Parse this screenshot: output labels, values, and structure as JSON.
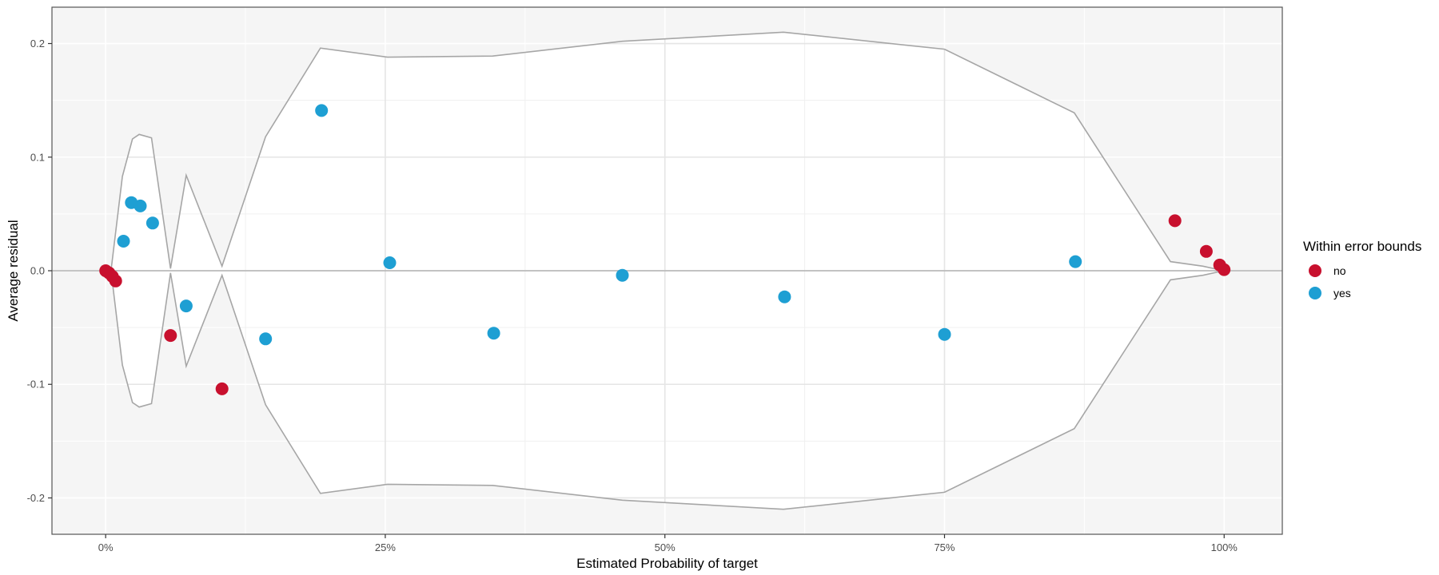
{
  "chart_data": {
    "type": "scatter",
    "xlabel": "Estimated Probability of target",
    "ylabel": "Average residual",
    "xlim": [
      -0.048,
      1.052
    ],
    "ylim": [
      -0.232,
      0.232
    ],
    "x_ticks": [
      0,
      0.25,
      0.5,
      0.75,
      1.0
    ],
    "x_tick_labels": [
      "0%",
      "25%",
      "50%",
      "75%",
      "100%"
    ],
    "y_ticks": [
      -0.2,
      -0.1,
      0.0,
      0.1,
      0.2
    ],
    "y_tick_labels": [
      "-0.2",
      "-0.1",
      "0.0",
      "0.1",
      "0.2"
    ],
    "grid": true,
    "zero_line": 0,
    "error_bounds": {
      "x": [
        0.0,
        0.005,
        0.015,
        0.024,
        0.03,
        0.041,
        0.058,
        0.072,
        0.104,
        0.143,
        0.192,
        0.252,
        0.346,
        0.462,
        0.606,
        0.75,
        0.866,
        0.952,
        0.981,
        0.995,
        1.0
      ],
      "upper": [
        0.0,
        0.002,
        0.083,
        0.116,
        0.12,
        0.117,
        0.002,
        0.084,
        0.004,
        0.118,
        0.196,
        0.188,
        0.189,
        0.202,
        0.21,
        0.195,
        0.139,
        0.008,
        0.004,
        0.001,
        0.0
      ],
      "lower": [
        0.0,
        -0.002,
        -0.083,
        -0.116,
        -0.12,
        -0.117,
        -0.002,
        -0.084,
        -0.004,
        -0.118,
        -0.196,
        -0.188,
        -0.189,
        -0.202,
        -0.21,
        -0.195,
        -0.139,
        -0.008,
        -0.004,
        -0.001,
        0.0
      ]
    },
    "series": [
      {
        "name": "no",
        "color": "#c8102e",
        "points": [
          [
            0.0,
            0.0
          ],
          [
            0.003,
            -0.002
          ],
          [
            0.006,
            -0.005
          ],
          [
            0.009,
            -0.009
          ],
          [
            0.058,
            -0.057
          ],
          [
            0.104,
            -0.104
          ],
          [
            0.956,
            0.044
          ],
          [
            0.984,
            0.017
          ],
          [
            0.996,
            0.005
          ],
          [
            1.0,
            0.001
          ]
        ]
      },
      {
        "name": "yes",
        "color": "#1e9fd3",
        "points": [
          [
            0.016,
            0.026
          ],
          [
            0.023,
            0.06
          ],
          [
            0.031,
            0.057
          ],
          [
            0.042,
            0.042
          ],
          [
            0.072,
            -0.031
          ],
          [
            0.143,
            -0.06
          ],
          [
            0.193,
            0.141
          ],
          [
            0.254,
            0.007
          ],
          [
            0.347,
            -0.055
          ],
          [
            0.462,
            -0.004
          ],
          [
            0.607,
            -0.023
          ],
          [
            0.75,
            -0.056
          ],
          [
            0.867,
            0.008
          ]
        ]
      }
    ],
    "legend": {
      "title": "Within error bounds",
      "position": "right",
      "entries": [
        "no",
        "yes"
      ]
    },
    "colors": {
      "panel_background": "#f5f5f5",
      "band_fill": "#ffffff",
      "grid_major": "#e5e5e5",
      "bound_line": "#a6a6a6",
      "zero_line": "#b3b3b3",
      "panel_border": "#555555"
    }
  }
}
